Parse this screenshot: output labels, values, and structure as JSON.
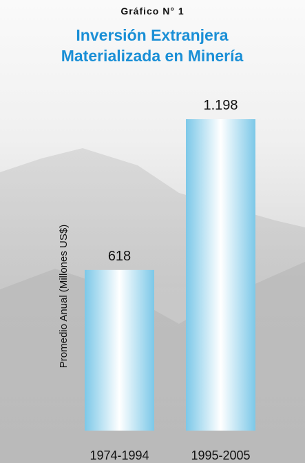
{
  "chart_data": {
    "type": "bar",
    "supertitle": "Gráfico N° 1",
    "title": "Inversión Extranjera Materializada en Minería",
    "y_label": "Promedio Anual (Millones US$)",
    "categories": [
      "1974-1994",
      "1995-2005"
    ],
    "values": [
      618,
      1198
    ],
    "value_labels": [
      "618",
      "1.198"
    ],
    "color": "#7cc8e8"
  }
}
